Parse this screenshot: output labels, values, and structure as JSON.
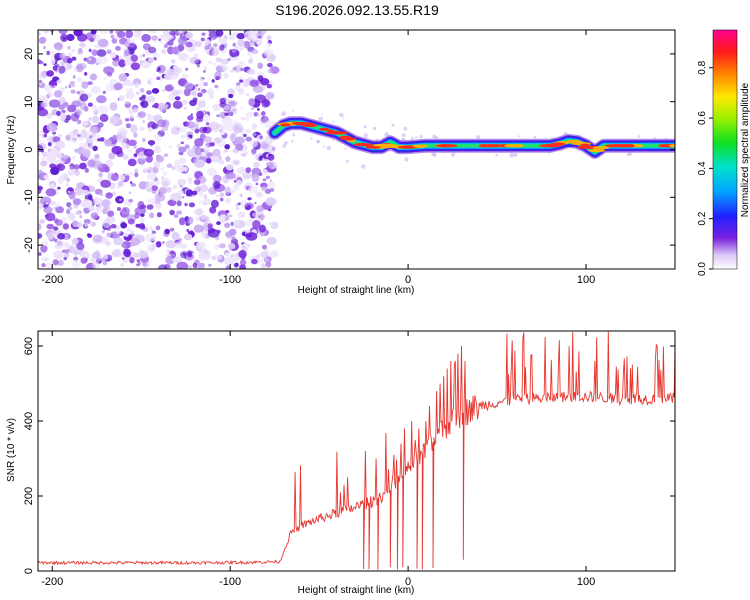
{
  "title": "S196.2026.092.13.55.R19",
  "chart_data": [
    {
      "type": "heatmap",
      "xlabel": "Height of straight line (km)",
      "ylabel": "Frequency (Hz)",
      "xlim": [
        -208,
        150
      ],
      "ylim": [
        -25,
        25
      ],
      "xticks": [
        -200,
        -100,
        0,
        100
      ],
      "yticks": [
        -20,
        -10,
        0,
        10,
        20
      ],
      "xtick_labels": [
        "-200",
        "-100",
        "0",
        "100"
      ],
      "ytick_labels": [
        "-20",
        "-10",
        "0",
        "10",
        "20"
      ],
      "noise_region_x": [
        -208,
        -75
      ],
      "signal_ridge": {
        "x": [
          -75,
          -70,
          -66,
          -60,
          -55,
          -50,
          -45,
          -40,
          -35,
          -30,
          -25,
          -20,
          -15,
          -10,
          -5,
          0,
          10,
          20,
          30,
          40,
          50,
          60,
          70,
          80,
          85,
          90,
          95,
          100,
          105,
          110,
          115,
          120,
          130,
          140,
          150
        ],
        "freq": [
          3.5,
          5,
          5.5,
          5.5,
          5,
          4.5,
          4,
          3.5,
          2.5,
          1.5,
          1,
          0.5,
          0.5,
          1.5,
          0.5,
          0.5,
          0.8,
          0.8,
          0.8,
          0.8,
          0.8,
          0.8,
          0.8,
          0.8,
          1.2,
          1.8,
          1.6,
          0.8,
          -0.5,
          0.8,
          0.8,
          0.8,
          0.8,
          0.8,
          0.8
        ]
      },
      "colorbar": {
        "label": "Normalized spectral amplitude",
        "range": [
          0,
          0.95
        ],
        "ticks": [
          0.0,
          0.2,
          0.4,
          0.6,
          0.8
        ],
        "tick_labels": [
          "0.0",
          "0.2",
          "0.4",
          "0.6",
          "0.8"
        ]
      }
    },
    {
      "type": "line",
      "xlabel": "Height of straight line (km)",
      "ylabel": "SNR (10 * v/v)",
      "xlim": [
        -208,
        150
      ],
      "ylim": [
        0,
        640
      ],
      "xticks": [
        -200,
        -100,
        0,
        100
      ],
      "yticks": [
        0,
        200,
        400,
        600
      ],
      "xtick_labels": [
        "-200",
        "-100",
        "0",
        "100"
      ],
      "ytick_labels": [
        "0",
        "200",
        "400",
        "600"
      ],
      "series": [
        {
          "name": "SNR",
          "color": "#e8362f",
          "envelope_x": [
            -208,
            -180,
            -150,
            -120,
            -90,
            -72,
            -66,
            -60,
            -50,
            -40,
            -30,
            -20,
            -10,
            0,
            10,
            20,
            30,
            40,
            50,
            60,
            70,
            80,
            90,
            100,
            110,
            120,
            130,
            140,
            150
          ],
          "envelope_y": [
            22,
            22,
            22,
            22,
            23,
            25,
            100,
            120,
            140,
            155,
            170,
            185,
            215,
            270,
            320,
            380,
            420,
            440,
            450,
            455,
            460,
            462,
            465,
            465,
            462,
            458,
            460,
            458,
            460
          ],
          "spike_x": [
            -38,
            -36,
            -34,
            -24,
            -22,
            -18,
            -10,
            -8,
            -4,
            -2,
            2,
            4,
            6,
            8,
            10,
            12,
            14,
            16,
            18,
            20,
            22,
            24,
            26,
            28,
            30,
            32
          ],
          "spike_y": [
            210,
            230,
            250,
            320,
            340,
            300,
            290,
            310,
            340,
            380,
            400,
            350,
            380,
            420,
            400,
            440,
            460,
            480,
            500,
            520,
            540,
            560,
            550,
            580,
            600,
            560
          ],
          "dropout_x": [
            -25,
            -22,
            -17,
            -10,
            -6,
            -3,
            5,
            8,
            14,
            31
          ],
          "dropout_y": [
            5,
            5,
            3,
            10,
            4,
            10,
            6,
            4,
            8,
            30
          ]
        }
      ]
    }
  ]
}
